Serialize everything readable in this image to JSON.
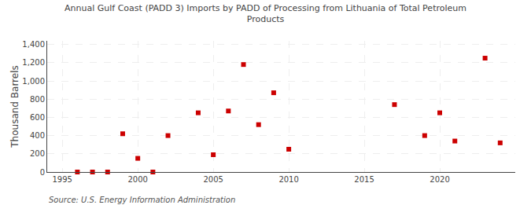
{
  "chart_data": {
    "type": "scatter",
    "title": "Annual Gulf Coast (PADD 3) Imports by PADD of Processing from Lithuania of Total Petroleum\nProducts",
    "ylabel": "Thousand Barrels",
    "annotations": [
      "Source: U.S. Energy Information Administration"
    ],
    "x": [
      1996,
      1997,
      1998,
      1999,
      2000,
      2001,
      2002,
      2004,
      2005,
      2006,
      2007,
      2008,
      2009,
      2010,
      2017,
      2019,
      2020,
      2021,
      2023,
      2024
    ],
    "values": [
      0,
      0,
      0,
      420,
      150,
      0,
      400,
      650,
      190,
      670,
      1180,
      520,
      870,
      250,
      740,
      400,
      650,
      340,
      1250,
      320
    ],
    "color": "#cc0000",
    "marker": "square",
    "xlim": [
      1994,
      2025
    ],
    "xticks": [
      1995,
      2000,
      2005,
      2010,
      2015,
      2020
    ],
    "ylim": [
      0,
      1440
    ],
    "yticks": [
      0,
      200,
      400,
      600,
      800,
      {
        "value": 1000,
        "label": "1,000"
      },
      {
        "value": 1200,
        "label": "1,200"
      },
      {
        "value": 1400,
        "label": "1,400"
      }
    ],
    "grid": true
  }
}
